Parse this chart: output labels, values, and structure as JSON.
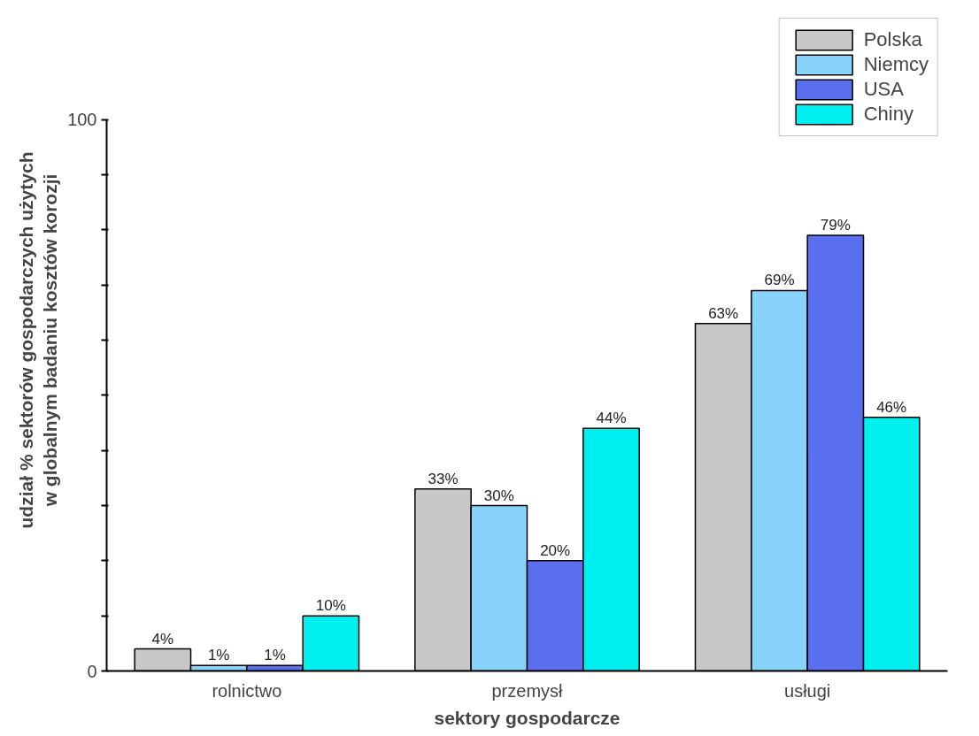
{
  "chart_data": {
    "type": "bar",
    "xlabel": "sektory gospodarcze",
    "ylabel": "udział % sektorów gospodarczych użytych\nw globalnym badaniu kosztów korozji",
    "categories": [
      "rolnictwo",
      "przemysł",
      "usługi"
    ],
    "series": [
      {
        "name": "Polska",
        "color": "#c8c8c8",
        "values": [
          4,
          33,
          63
        ],
        "value_labels": [
          "4%",
          "33%",
          "63%"
        ]
      },
      {
        "name": "Niemcy",
        "color": "#87d3fa",
        "values": [
          1,
          30,
          69
        ],
        "value_labels": [
          "1%",
          "30%",
          "69%"
        ]
      },
      {
        "name": "USA",
        "color": "#5a6ef0",
        "values": [
          1,
          20,
          79
        ],
        "value_labels": [
          "1%",
          "20%",
          "79%"
        ]
      },
      {
        "name": "Chiny",
        "color": "#00f0f0",
        "values": [
          10,
          44,
          46
        ],
        "value_labels": [
          "10%",
          "44%",
          "46%"
        ]
      }
    ],
    "ylim": [
      0,
      100
    ],
    "yticks": [
      0,
      {
        "value": 10,
        "label": null
      },
      {
        "value": 20,
        "label": null
      },
      {
        "value": 30,
        "label": null
      },
      {
        "value": 40,
        "label": null
      },
      {
        "value": 50,
        "label": null
      },
      {
        "value": 60,
        "label": null
      },
      {
        "value": 70,
        "label": null
      },
      {
        "value": 80,
        "label": null
      },
      {
        "value": 90,
        "label": null
      },
      100
    ],
    "grid": false,
    "legend": "top right"
  }
}
